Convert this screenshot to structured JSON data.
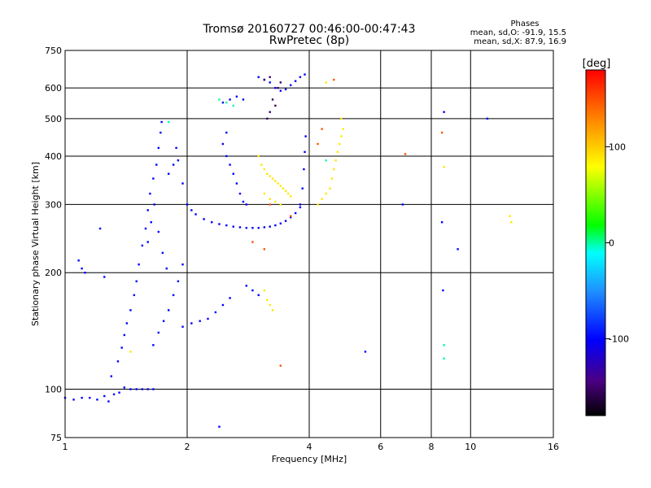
{
  "chart_data": {
    "type": "scatter",
    "title": "Tromsø 20160727 00:46:00-00:47:43",
    "subtitle": "RwPretec (8p)",
    "xlabel": "Frequency [MHz]",
    "ylabel": "Stationary phase Virtual Height [km]",
    "x_scale": "log",
    "y_scale": "log",
    "xlim": [
      1,
      16
    ],
    "ylim": [
      75,
      750
    ],
    "x_ticks": [
      1,
      2,
      4,
      6,
      8,
      10,
      16
    ],
    "y_ticks": [
      75,
      100,
      200,
      300,
      400,
      500,
      600,
      750
    ],
    "grid": true,
    "phases_box": {
      "title": "Phases",
      "line1": "mean, sd,O: -91.9, 15.5",
      "line2": "mean, sd,X:  87.9, 16.9"
    },
    "colorbar": {
      "label": "[deg]",
      "range": [
        -180,
        180
      ],
      "ticks": [
        100,
        0,
        -100
      ],
      "colormap": "rainbow (black-purple-blue-cyan-green-yellow-orange-red)"
    },
    "series": [
      {
        "comment_free": true,
        "color_value": -100,
        "points": [
          [
            1.0,
            95
          ],
          [
            1.05,
            94
          ],
          [
            1.1,
            95
          ],
          [
            1.15,
            95
          ],
          [
            1.2,
            94
          ],
          [
            1.25,
            96
          ],
          [
            1.28,
            93
          ],
          [
            1.32,
            97
          ],
          [
            1.36,
            98
          ],
          [
            1.4,
            101
          ],
          [
            1.45,
            100
          ],
          [
            1.5,
            100
          ],
          [
            1.55,
            100
          ],
          [
            1.6,
            100
          ],
          [
            1.65,
            100
          ],
          [
            1.08,
            215
          ],
          [
            1.1,
            205
          ],
          [
            1.12,
            200
          ],
          [
            1.22,
            260
          ],
          [
            1.25,
            195
          ],
          [
            1.3,
            108
          ],
          [
            1.35,
            118
          ],
          [
            1.38,
            128
          ],
          [
            1.4,
            138
          ],
          [
            1.42,
            148
          ],
          [
            1.45,
            160
          ],
          [
            1.48,
            175
          ],
          [
            1.5,
            190
          ],
          [
            1.52,
            210
          ],
          [
            1.55,
            235
          ],
          [
            1.58,
            260
          ],
          [
            1.6,
            290
          ],
          [
            1.62,
            320
          ],
          [
            1.65,
            350
          ],
          [
            1.68,
            380
          ],
          [
            1.7,
            420
          ],
          [
            1.72,
            460
          ],
          [
            1.73,
            490
          ],
          [
            1.65,
            130
          ],
          [
            1.7,
            140
          ],
          [
            1.75,
            150
          ],
          [
            1.8,
            160
          ],
          [
            1.85,
            175
          ],
          [
            1.9,
            190
          ],
          [
            1.95,
            210
          ],
          [
            1.6,
            240
          ],
          [
            1.63,
            270
          ],
          [
            1.66,
            300
          ],
          [
            1.7,
            255
          ],
          [
            1.74,
            225
          ],
          [
            1.78,
            205
          ],
          [
            1.8,
            360
          ],
          [
            1.85,
            380
          ],
          [
            1.88,
            420
          ],
          [
            1.9,
            390
          ],
          [
            1.95,
            340
          ],
          [
            1.95,
            145
          ],
          [
            2.05,
            148
          ],
          [
            2.15,
            150
          ],
          [
            2.25,
            152
          ],
          [
            2.35,
            158
          ],
          [
            2.45,
            165
          ],
          [
            2.55,
            172
          ],
          [
            2.0,
            300
          ],
          [
            2.05,
            290
          ],
          [
            2.1,
            283
          ],
          [
            2.2,
            275
          ],
          [
            2.3,
            270
          ],
          [
            2.4,
            267
          ],
          [
            2.5,
            265
          ],
          [
            2.6,
            263
          ],
          [
            2.7,
            262
          ],
          [
            2.8,
            261
          ],
          [
            2.9,
            261
          ],
          [
            3.0,
            261
          ],
          [
            3.1,
            262
          ],
          [
            3.2,
            263
          ],
          [
            3.3,
            265
          ],
          [
            3.4,
            268
          ],
          [
            3.5,
            272
          ],
          [
            3.6,
            278
          ],
          [
            3.7,
            285
          ],
          [
            3.8,
            295
          ],
          [
            2.5,
            400
          ],
          [
            2.55,
            380
          ],
          [
            2.6,
            360
          ],
          [
            2.65,
            340
          ],
          [
            2.7,
            320
          ],
          [
            2.75,
            305
          ],
          [
            2.8,
            300
          ],
          [
            2.45,
            430
          ],
          [
            2.5,
            460
          ],
          [
            2.45,
            550
          ],
          [
            2.55,
            560
          ],
          [
            2.65,
            570
          ],
          [
            2.75,
            560
          ],
          [
            3.0,
            640
          ],
          [
            3.1,
            630
          ],
          [
            3.2,
            620
          ],
          [
            3.3,
            600
          ],
          [
            3.4,
            590
          ],
          [
            3.5,
            595
          ],
          [
            3.6,
            610
          ],
          [
            3.7,
            625
          ],
          [
            3.8,
            640
          ],
          [
            3.9,
            650
          ],
          [
            3.8,
            300
          ],
          [
            3.85,
            330
          ],
          [
            3.88,
            370
          ],
          [
            3.9,
            410
          ],
          [
            3.92,
            450
          ],
          [
            2.8,
            185
          ],
          [
            2.9,
            180
          ],
          [
            3.0,
            175
          ],
          [
            5.5,
            125
          ],
          [
            6.8,
            300
          ],
          [
            8.5,
            270
          ],
          [
            8.55,
            180
          ],
          [
            8.6,
            520
          ],
          [
            9.3,
            230
          ],
          [
            11.0,
            500
          ],
          [
            2.4,
            80
          ]
        ]
      },
      {
        "color_value": -150,
        "points": [
          [
            3.1,
            630
          ],
          [
            3.2,
            640
          ],
          [
            3.25,
            560
          ],
          [
            3.3,
            540
          ],
          [
            3.35,
            600
          ],
          [
            3.4,
            620
          ],
          [
            3.15,
            500
          ],
          [
            3.2,
            520
          ]
        ]
      },
      {
        "color_value": 0,
        "points": [
          [
            2.4,
            560
          ],
          [
            2.5,
            550
          ],
          [
            2.6,
            540
          ],
          [
            1.8,
            490
          ],
          [
            4.4,
            390
          ],
          [
            8.6,
            120
          ],
          [
            8.6,
            130
          ]
        ]
      },
      {
        "color_value": 90,
        "points": [
          [
            3.0,
            400
          ],
          [
            3.05,
            380
          ],
          [
            3.1,
            370
          ],
          [
            3.15,
            360
          ],
          [
            3.2,
            355
          ],
          [
            3.25,
            350
          ],
          [
            3.3,
            345
          ],
          [
            3.35,
            340
          ],
          [
            3.4,
            335
          ],
          [
            3.45,
            330
          ],
          [
            3.5,
            325
          ],
          [
            3.55,
            320
          ],
          [
            3.6,
            315
          ],
          [
            3.1,
            320
          ],
          [
            3.2,
            310
          ],
          [
            3.3,
            305
          ],
          [
            3.4,
            300
          ],
          [
            4.2,
            300
          ],
          [
            4.3,
            310
          ],
          [
            4.4,
            320
          ],
          [
            4.5,
            330
          ],
          [
            4.55,
            350
          ],
          [
            4.6,
            370
          ],
          [
            4.65,
            390
          ],
          [
            4.7,
            410
          ],
          [
            4.75,
            430
          ],
          [
            4.8,
            450
          ],
          [
            4.85,
            470
          ],
          [
            4.8,
            500
          ],
          [
            3.1,
            180
          ],
          [
            3.15,
            170
          ],
          [
            3.2,
            165
          ],
          [
            3.25,
            160
          ],
          [
            4.4,
            620
          ],
          [
            8.6,
            375
          ],
          [
            1.45,
            125
          ],
          [
            12.5,
            280
          ],
          [
            12.6,
            270
          ]
        ]
      },
      {
        "color_value": 150,
        "points": [
          [
            4.2,
            430
          ],
          [
            4.3,
            470
          ],
          [
            4.6,
            630
          ],
          [
            6.9,
            405
          ],
          [
            8.5,
            460
          ],
          [
            3.4,
            115
          ],
          [
            3.6,
            280
          ],
          [
            2.9,
            240
          ],
          [
            3.1,
            230
          ],
          [
            3.2,
            300
          ]
        ]
      }
    ]
  }
}
